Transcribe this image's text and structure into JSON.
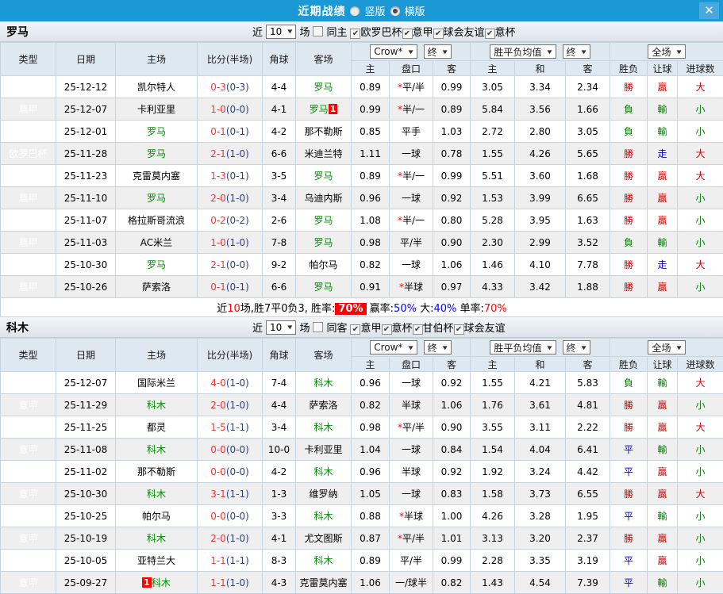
{
  "titlebar": {
    "title": "近期战绩",
    "radio_options": [
      {
        "label": "竖版",
        "selected": false
      },
      {
        "label": "横版",
        "selected": true
      }
    ]
  },
  "icons": {
    "arrow": "▼",
    "check": "✔",
    "close": "✕"
  },
  "labels": {
    "near": "近",
    "matches": "场"
  },
  "table_header": {
    "type": "类型",
    "date": "日期",
    "home": "主场",
    "score": "比分(半场)",
    "corner": "角球",
    "away": "客场",
    "odds_home": "主",
    "handicap": "盘口",
    "odds_away": "客",
    "avg_home": "主",
    "avg_draw": "和",
    "avg_away": "客",
    "result": "胜负",
    "let_ball": "让球",
    "goals": "进球数",
    "bookmaker": "Crow*",
    "final": "终",
    "avg_label": "胜平负均值",
    "scope": "全场"
  },
  "sections": [
    {
      "team": "罗马",
      "count": "10",
      "same_label": "同主",
      "same_checked": false,
      "leagues": [
        {
          "label": "欧罗巴杯",
          "checked": true
        },
        {
          "label": "意甲",
          "checked": true
        },
        {
          "label": "球会友谊",
          "checked": true
        },
        {
          "label": "意杯",
          "checked": true
        }
      ],
      "rows": [
        {
          "league": "欧罗巴杯",
          "lk": "europa",
          "date": "25-12-12",
          "home": "凯尔特人",
          "home_team": false,
          "home_badge": "",
          "ft": "0-3",
          "ht": "(0-3)",
          "corner": "4-4",
          "away": "罗马",
          "away_team": true,
          "away_badge": "",
          "o1": "0.89",
          "hc": "*平/半",
          "o2": "0.99",
          "a1": "3.05",
          "a2": "3.34",
          "a3": "2.34",
          "r1": {
            "t": "勝",
            "c": "r"
          },
          "r2": {
            "t": "贏",
            "c": "r"
          },
          "r3": {
            "t": "大",
            "c": "r"
          }
        },
        {
          "league": "意甲",
          "lk": "serie_a",
          "date": "25-12-07",
          "home": "卡利亚里",
          "home_team": false,
          "home_badge": "",
          "ft": "1-0",
          "ht": "(0-0)",
          "corner": "4-1",
          "away": "罗马",
          "away_team": true,
          "away_badge": "1",
          "o1": "0.99",
          "hc": "*半/一",
          "o2": "0.89",
          "a1": "5.84",
          "a2": "3.56",
          "a3": "1.66",
          "r1": {
            "t": "負",
            "c": "g"
          },
          "r2": {
            "t": "輸",
            "c": "g"
          },
          "r3": {
            "t": "小",
            "c": "g"
          }
        },
        {
          "league": "意甲",
          "lk": "serie_a",
          "date": "25-12-01",
          "home": "罗马",
          "home_team": true,
          "home_badge": "",
          "ft": "0-1",
          "ht": "(0-1)",
          "corner": "4-2",
          "away": "那不勒斯",
          "away_team": false,
          "away_badge": "",
          "o1": "0.85",
          "hc": "平手",
          "o2": "1.03",
          "a1": "2.72",
          "a2": "2.80",
          "a3": "3.05",
          "r1": {
            "t": "負",
            "c": "g"
          },
          "r2": {
            "t": "輸",
            "c": "g"
          },
          "r3": {
            "t": "小",
            "c": "g"
          }
        },
        {
          "league": "欧罗巴杯",
          "lk": "europa",
          "date": "25-11-28",
          "home": "罗马",
          "home_team": true,
          "home_badge": "",
          "ft": "2-1",
          "ht": "(1-0)",
          "corner": "6-6",
          "away": "米迪兰特",
          "away_team": false,
          "away_badge": "",
          "o1": "1.11",
          "hc": "一球",
          "o2": "0.78",
          "a1": "1.55",
          "a2": "4.26",
          "a3": "5.65",
          "r1": {
            "t": "勝",
            "c": "r"
          },
          "r2": {
            "t": "走",
            "c": "b"
          },
          "r3": {
            "t": "大",
            "c": "r"
          }
        },
        {
          "league": "意甲",
          "lk": "serie_a",
          "date": "25-11-23",
          "home": "克雷莫内塞",
          "home_team": false,
          "home_badge": "",
          "ft": "1-3",
          "ht": "(0-1)",
          "corner": "3-5",
          "away": "罗马",
          "away_team": true,
          "away_badge": "",
          "o1": "0.89",
          "hc": "*半/一",
          "o2": "0.99",
          "a1": "5.51",
          "a2": "3.60",
          "a3": "1.68",
          "r1": {
            "t": "勝",
            "c": "r"
          },
          "r2": {
            "t": "贏",
            "c": "r"
          },
          "r3": {
            "t": "大",
            "c": "r"
          }
        },
        {
          "league": "意甲",
          "lk": "serie_a",
          "date": "25-11-10",
          "home": "罗马",
          "home_team": true,
          "home_badge": "",
          "ft": "2-0",
          "ht": "(1-0)",
          "corner": "3-4",
          "away": "乌迪内斯",
          "away_team": false,
          "away_badge": "",
          "o1": "0.96",
          "hc": "一球",
          "o2": "0.92",
          "a1": "1.53",
          "a2": "3.99",
          "a3": "6.65",
          "r1": {
            "t": "勝",
            "c": "r"
          },
          "r2": {
            "t": "贏",
            "c": "r"
          },
          "r3": {
            "t": "小",
            "c": "g"
          }
        },
        {
          "league": "欧罗巴杯",
          "lk": "europa",
          "date": "25-11-07",
          "home": "格拉斯哥流浪",
          "home_team": false,
          "home_badge": "",
          "ft": "0-2",
          "ht": "(0-2)",
          "corner": "2-6",
          "away": "罗马",
          "away_team": true,
          "away_badge": "",
          "o1": "1.08",
          "hc": "*半/一",
          "o2": "0.80",
          "a1": "5.28",
          "a2": "3.95",
          "a3": "1.63",
          "r1": {
            "t": "勝",
            "c": "r"
          },
          "r2": {
            "t": "贏",
            "c": "r"
          },
          "r3": {
            "t": "小",
            "c": "g"
          }
        },
        {
          "league": "意甲",
          "lk": "serie_a",
          "date": "25-11-03",
          "home": "AC米兰",
          "home_team": false,
          "home_badge": "",
          "ft": "1-0",
          "ht": "(1-0)",
          "corner": "7-8",
          "away": "罗马",
          "away_team": true,
          "away_badge": "",
          "o1": "0.98",
          "hc": "平/半",
          "o2": "0.90",
          "a1": "2.30",
          "a2": "2.99",
          "a3": "3.52",
          "r1": {
            "t": "負",
            "c": "g"
          },
          "r2": {
            "t": "輸",
            "c": "g"
          },
          "r3": {
            "t": "小",
            "c": "g"
          }
        },
        {
          "league": "意甲",
          "lk": "serie_a",
          "date": "25-10-30",
          "home": "罗马",
          "home_team": true,
          "home_badge": "",
          "ft": "2-1",
          "ht": "(0-0)",
          "corner": "9-2",
          "away": "帕尔马",
          "away_team": false,
          "away_badge": "",
          "o1": "0.82",
          "hc": "一球",
          "o2": "1.06",
          "a1": "1.46",
          "a2": "4.10",
          "a3": "7.78",
          "r1": {
            "t": "勝",
            "c": "r"
          },
          "r2": {
            "t": "走",
            "c": "b"
          },
          "r3": {
            "t": "大",
            "c": "r"
          }
        },
        {
          "league": "意甲",
          "lk": "serie_a",
          "date": "25-10-26",
          "home": "萨索洛",
          "home_team": false,
          "home_badge": "",
          "ft": "0-1",
          "ht": "(0-1)",
          "corner": "6-6",
          "away": "罗马",
          "away_team": true,
          "away_badge": "",
          "o1": "0.91",
          "hc": "*半球",
          "o2": "0.97",
          "a1": "4.33",
          "a2": "3.42",
          "a3": "1.88",
          "r1": {
            "t": "勝",
            "c": "r"
          },
          "r2": {
            "t": "贏",
            "c": "r"
          },
          "r3": {
            "t": "小",
            "c": "g"
          }
        }
      ],
      "summary": [
        {
          "t": "近"
        },
        {
          "t": "10",
          "c": "red"
        },
        {
          "t": "场,胜7平0负3, 胜率:"
        },
        {
          "t": "70%",
          "c": "badge"
        },
        {
          "t": " 赢率:"
        },
        {
          "t": "50%",
          "c": "blue"
        },
        {
          "t": " 大:"
        },
        {
          "t": "40%",
          "c": "blue"
        },
        {
          "t": " 单率:"
        },
        {
          "t": "70%",
          "c": "red"
        }
      ]
    },
    {
      "team": "科木",
      "count": "10",
      "same_label": "同客",
      "same_checked": false,
      "leagues": [
        {
          "label": "意甲",
          "checked": true
        },
        {
          "label": "意杯",
          "checked": true
        },
        {
          "label": "甘伯杯",
          "checked": true
        },
        {
          "label": "球会友谊",
          "checked": true
        }
      ],
      "rows": [
        {
          "league": "意甲",
          "lk": "serie_a",
          "date": "25-12-07",
          "home": "国际米兰",
          "home_team": false,
          "home_badge": "",
          "ft": "4-0",
          "ht": "(1-0)",
          "corner": "7-4",
          "away": "科木",
          "away_team": true,
          "away_badge": "",
          "o1": "0.96",
          "hc": "一球",
          "o2": "0.92",
          "a1": "1.55",
          "a2": "4.21",
          "a3": "5.83",
          "r1": {
            "t": "負",
            "c": "g"
          },
          "r2": {
            "t": "輸",
            "c": "g"
          },
          "r3": {
            "t": "大",
            "c": "r"
          }
        },
        {
          "league": "意甲",
          "lk": "serie_a",
          "date": "25-11-29",
          "home": "科木",
          "home_team": true,
          "home_badge": "",
          "ft": "2-0",
          "ht": "(1-0)",
          "corner": "4-4",
          "away": "萨索洛",
          "away_team": false,
          "away_badge": "",
          "o1": "0.82",
          "hc": "半球",
          "o2": "1.06",
          "a1": "1.76",
          "a2": "3.61",
          "a3": "4.81",
          "r1": {
            "t": "勝",
            "c": "r"
          },
          "r2": {
            "t": "贏",
            "c": "r"
          },
          "r3": {
            "t": "小",
            "c": "g"
          }
        },
        {
          "league": "意甲",
          "lk": "serie_a",
          "date": "25-11-25",
          "home": "都灵",
          "home_team": false,
          "home_badge": "",
          "ft": "1-5",
          "ht": "(1-1)",
          "corner": "3-4",
          "away": "科木",
          "away_team": true,
          "away_badge": "",
          "o1": "0.98",
          "hc": "*平/半",
          "o2": "0.90",
          "a1": "3.55",
          "a2": "3.11",
          "a3": "2.22",
          "r1": {
            "t": "勝",
            "c": "r"
          },
          "r2": {
            "t": "贏",
            "c": "r"
          },
          "r3": {
            "t": "大",
            "c": "r"
          }
        },
        {
          "league": "意甲",
          "lk": "serie_a",
          "date": "25-11-08",
          "home": "科木",
          "home_team": true,
          "home_badge": "",
          "ft": "0-0",
          "ht": "(0-0)",
          "corner": "10-0",
          "away": "卡利亚里",
          "away_team": false,
          "away_badge": "",
          "o1": "1.04",
          "hc": "一球",
          "o2": "0.84",
          "a1": "1.54",
          "a2": "4.04",
          "a3": "6.41",
          "r1": {
            "t": "平",
            "c": "b"
          },
          "r2": {
            "t": "輸",
            "c": "g"
          },
          "r3": {
            "t": "小",
            "c": "g"
          }
        },
        {
          "league": "意甲",
          "lk": "serie_a",
          "date": "25-11-02",
          "home": "那不勒斯",
          "home_team": false,
          "home_badge": "",
          "ft": "0-0",
          "ht": "(0-0)",
          "corner": "4-2",
          "away": "科木",
          "away_team": true,
          "away_badge": "",
          "o1": "0.96",
          "hc": "半球",
          "o2": "0.92",
          "a1": "1.92",
          "a2": "3.24",
          "a3": "4.42",
          "r1": {
            "t": "平",
            "c": "b"
          },
          "r2": {
            "t": "贏",
            "c": "r"
          },
          "r3": {
            "t": "小",
            "c": "g"
          }
        },
        {
          "league": "意甲",
          "lk": "serie_a",
          "date": "25-10-30",
          "home": "科木",
          "home_team": true,
          "home_badge": "",
          "ft": "3-1",
          "ht": "(1-1)",
          "corner": "1-3",
          "away": "维罗纳",
          "away_team": false,
          "away_badge": "",
          "o1": "1.05",
          "hc": "一球",
          "o2": "0.83",
          "a1": "1.58",
          "a2": "3.73",
          "a3": "6.55",
          "r1": {
            "t": "勝",
            "c": "r"
          },
          "r2": {
            "t": "贏",
            "c": "r"
          },
          "r3": {
            "t": "大",
            "c": "r"
          }
        },
        {
          "league": "意甲",
          "lk": "serie_a",
          "date": "25-10-25",
          "home": "帕尔马",
          "home_team": false,
          "home_badge": "",
          "ft": "0-0",
          "ht": "(0-0)",
          "corner": "3-3",
          "away": "科木",
          "away_team": true,
          "away_badge": "",
          "o1": "0.88",
          "hc": "*半球",
          "o2": "1.00",
          "a1": "4.26",
          "a2": "3.28",
          "a3": "1.95",
          "r1": {
            "t": "平",
            "c": "b"
          },
          "r2": {
            "t": "輸",
            "c": "g"
          },
          "r3": {
            "t": "小",
            "c": "g"
          }
        },
        {
          "league": "意甲",
          "lk": "serie_a",
          "date": "25-10-19",
          "home": "科木",
          "home_team": true,
          "home_badge": "",
          "ft": "2-0",
          "ht": "(1-0)",
          "corner": "4-1",
          "away": "尤文图斯",
          "away_team": false,
          "away_badge": "",
          "o1": "0.87",
          "hc": "*平/半",
          "o2": "1.01",
          "a1": "3.13",
          "a2": "3.20",
          "a3": "2.37",
          "r1": {
            "t": "勝",
            "c": "r"
          },
          "r2": {
            "t": "贏",
            "c": "r"
          },
          "r3": {
            "t": "小",
            "c": "g"
          }
        },
        {
          "league": "意甲",
          "lk": "serie_a",
          "date": "25-10-05",
          "home": "亚特兰大",
          "home_team": false,
          "home_badge": "",
          "ft": "1-1",
          "ht": "(1-1)",
          "corner": "8-3",
          "away": "科木",
          "away_team": true,
          "away_badge": "",
          "o1": "0.89",
          "hc": "平/半",
          "o2": "0.99",
          "a1": "2.28",
          "a2": "3.35",
          "a3": "3.19",
          "r1": {
            "t": "平",
            "c": "b"
          },
          "r2": {
            "t": "贏",
            "c": "r"
          },
          "r3": {
            "t": "小",
            "c": "g"
          }
        },
        {
          "league": "意甲",
          "lk": "serie_a",
          "date": "25-09-27",
          "home": "科木",
          "home_team": true,
          "home_badge": "1",
          "ft": "1-1",
          "ht": "(1-0)",
          "corner": "4-3",
          "away": "克雷莫内塞",
          "away_team": false,
          "away_badge": "",
          "o1": "1.06",
          "hc": "一/球半",
          "o2": "0.82",
          "a1": "1.43",
          "a2": "4.54",
          "a3": "7.39",
          "r1": {
            "t": "平",
            "c": "b"
          },
          "r2": {
            "t": "輸",
            "c": "g"
          },
          "r3": {
            "t": "小",
            "c": "g"
          }
        }
      ],
      "summary": null
    }
  ]
}
